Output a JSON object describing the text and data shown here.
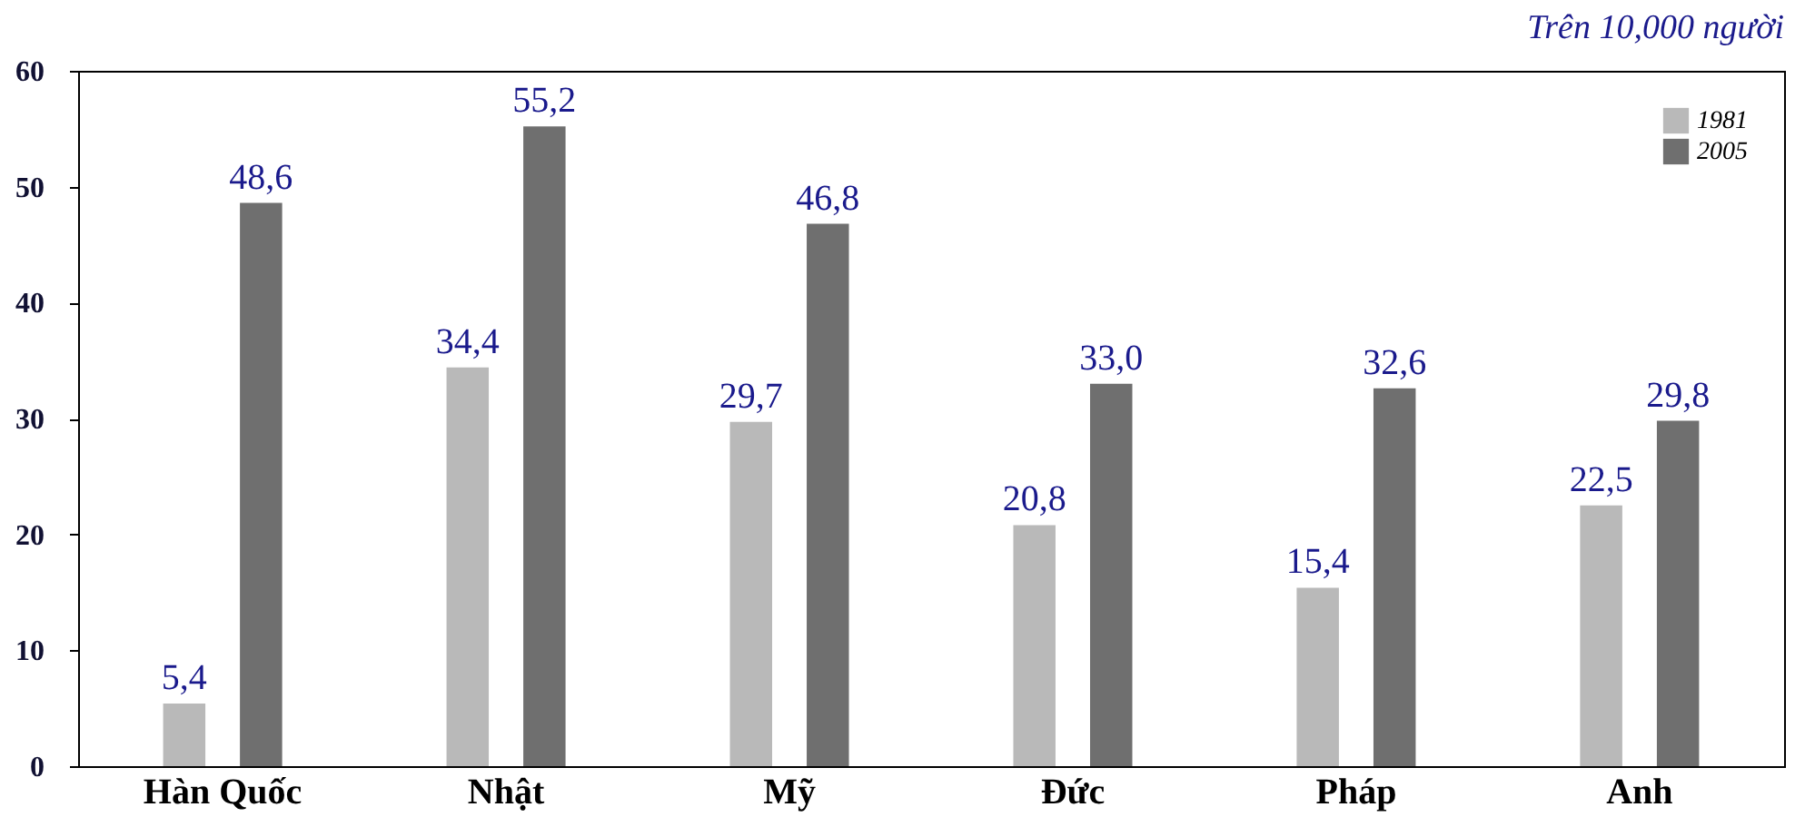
{
  "chart_data": {
    "type": "bar",
    "annotations": [
      "Trên 10,000 người"
    ],
    "categories": [
      "Hàn Quốc",
      "Nhật",
      "Mỹ",
      "Đức",
      "Pháp",
      "Anh"
    ],
    "series": [
      {
        "name": "1981",
        "color": "#b9b9b9",
        "values": [
          5.4,
          34.4,
          29.7,
          20.8,
          15.4,
          22.5
        ],
        "value_labels": [
          "5,4",
          "34,4",
          "29,7",
          "20,8",
          "15,4",
          "22,5"
        ]
      },
      {
        "name": "2005",
        "color": "#6f6f6f",
        "values": [
          48.6,
          55.2,
          46.8,
          33.0,
          32.6,
          29.8
        ],
        "value_labels": [
          "48,6",
          "55,2",
          "46,8",
          "33,0",
          "32,6",
          "29,8"
        ]
      }
    ],
    "ylim": [
      0,
      60
    ],
    "yticks": [
      0,
      10,
      20,
      30,
      40,
      50,
      60
    ],
    "grid": false,
    "legend": "top right"
  }
}
